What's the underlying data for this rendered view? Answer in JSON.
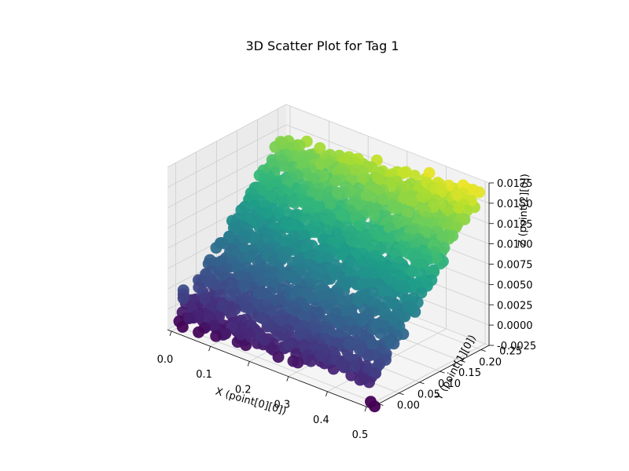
{
  "chart_data": {
    "type": "scatter",
    "projection": "3d",
    "title": "3D Scatter Plot for Tag 1",
    "xlabel": "X (point[0][0])",
    "ylabel": "Y (point[1][0])",
    "zlabel": "Z (point[2][0])",
    "xlim": [
      -0.01,
      0.51
    ],
    "ylim": [
      -0.02,
      0.27
    ],
    "zlim": [
      -0.0025,
      0.0175
    ],
    "xticks": [
      "0.0",
      "0.1",
      "0.2",
      "0.3",
      "0.4",
      "0.5"
    ],
    "yticks": [
      "0.00",
      "0.05",
      "0.10",
      "0.15",
      "0.20",
      "0.25"
    ],
    "zticks": [
      "-0.0025",
      "0.0000",
      "0.0025",
      "0.0050",
      "0.0075",
      "0.0100",
      "0.0125",
      "0.0150",
      "0.0175"
    ],
    "colormap": "viridis",
    "color_by": "z",
    "grid": true,
    "surface": {
      "x_range": [
        0.0,
        0.5
      ],
      "y_range": [
        0.0,
        0.25
      ],
      "z_at_x0_y0": -0.0015,
      "z_at_x05_y0": 0.0005,
      "z_at_x0_y025": 0.0135,
      "z_at_x05_y025": 0.0165,
      "noise_amplitude": 0.001
    },
    "outliers": [
      {
        "x": 0.01,
        "y": 0.0,
        "z": 0.0022
      },
      {
        "x": 0.01,
        "y": 0.0,
        "z": 0.0017
      },
      {
        "x": 0.01,
        "y": 0.0,
        "z": 0.0012
      },
      {
        "x": 0.5,
        "y": 0.0,
        "z": -0.003
      },
      {
        "x": 0.49,
        "y": 0.0,
        "z": -0.0026
      }
    ]
  }
}
